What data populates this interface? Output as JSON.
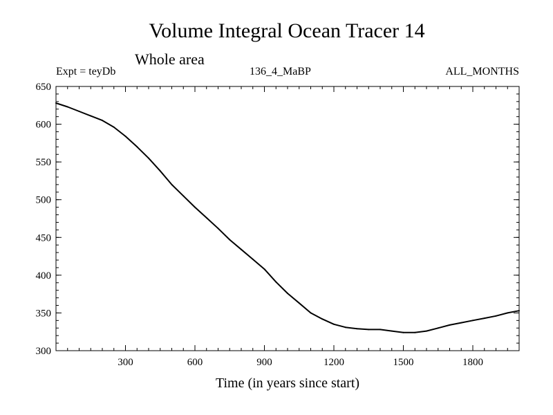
{
  "chart_data": {
    "type": "line",
    "title": "Volume Integral Ocean Tracer 14",
    "subtitle": "Whole area",
    "experiment": "Expt = teyDb",
    "run_label": "136_4_MaBP",
    "period_label": "ALL_MONTHS",
    "xlabel": "Time (in years since start)",
    "ylabel": "",
    "xlim": [
      0,
      2000
    ],
    "ylim": [
      300,
      650
    ],
    "xticks": [
      300,
      600,
      900,
      1200,
      1500,
      1800
    ],
    "yticks": [
      300,
      350,
      400,
      450,
      500,
      550,
      600,
      650
    ],
    "x_minor_step": 50,
    "y_minor_step": 10,
    "series": [
      {
        "name": "Tracer 14",
        "x": [
          0,
          50,
          100,
          150,
          200,
          250,
          300,
          350,
          400,
          450,
          500,
          550,
          600,
          650,
          700,
          750,
          800,
          850,
          900,
          950,
          1000,
          1050,
          1100,
          1150,
          1200,
          1250,
          1300,
          1350,
          1400,
          1450,
          1500,
          1550,
          1600,
          1650,
          1700,
          1750,
          1800,
          1850,
          1900,
          1950,
          2000
        ],
        "y": [
          628,
          623,
          617,
          611,
          605,
          596,
          584,
          570,
          555,
          538,
          520,
          505,
          490,
          476,
          462,
          447,
          434,
          421,
          408,
          391,
          376,
          363,
          350,
          342,
          335,
          331,
          329,
          328,
          328,
          326,
          324,
          324,
          326,
          330,
          334,
          337,
          340,
          343,
          346,
          350,
          353
        ]
      }
    ]
  }
}
